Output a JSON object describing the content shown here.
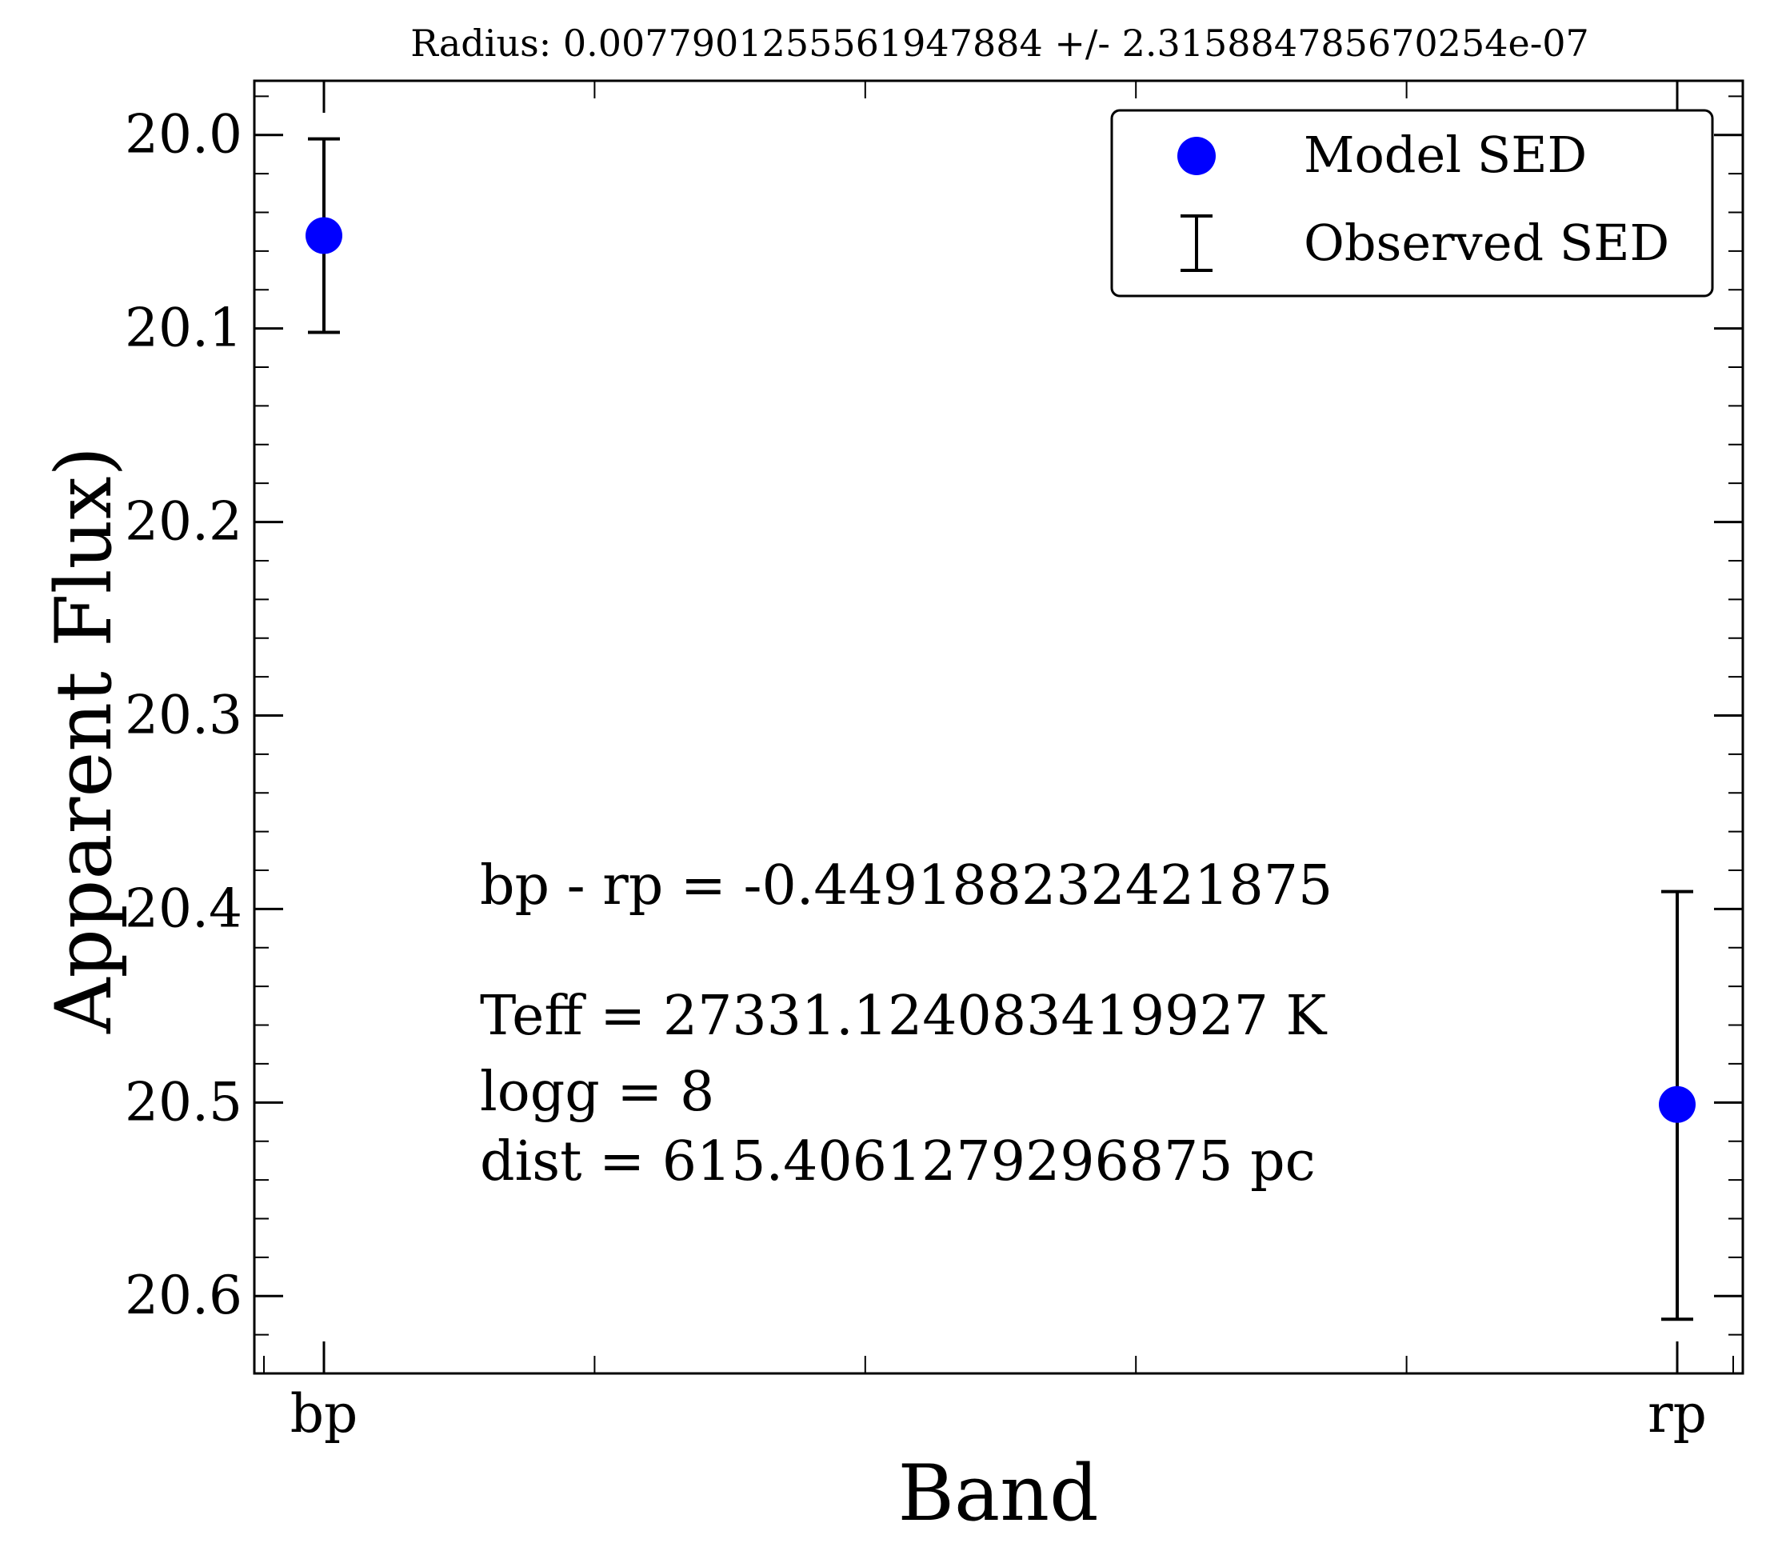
{
  "chart_data": {
    "type": "scatter",
    "title": "Radius: 0.0077901255561947884 +/- 2.315884785670254e-07",
    "xlabel": "Band",
    "ylabel": "Apparent Flux)",
    "categories": [
      "bp",
      "rp"
    ],
    "ylim": [
      20.64,
      19.972
    ],
    "y_inverted": true,
    "yticks": [
      "20.0",
      "20.1",
      "20.2",
      "20.3",
      "20.4",
      "20.5",
      "20.6"
    ],
    "yticks_values": [
      20.0,
      20.1,
      20.2,
      20.3,
      20.4,
      20.5,
      20.6
    ],
    "series": [
      {
        "name": "Model SED",
        "marker": "circle",
        "color": "#0000ff",
        "values": [
          20.052,
          20.501
        ]
      },
      {
        "name": "Observed SED",
        "marker": "errorbar",
        "color": "#000000",
        "values": [
          20.052,
          20.501
        ],
        "yerr_lower": [
          0.05,
          0.11
        ],
        "yerr_upper": [
          0.05,
          0.111
        ]
      }
    ],
    "legend": {
      "position": "top-right",
      "entries": [
        "Model SED",
        "Observed SED"
      ]
    },
    "grid": false,
    "annotations": [
      "bp - rp = -0.449188232421875",
      "Teff = 27331.124083419927 K",
      "logg = 8",
      "dist = 615.4061279296875 pc"
    ]
  }
}
